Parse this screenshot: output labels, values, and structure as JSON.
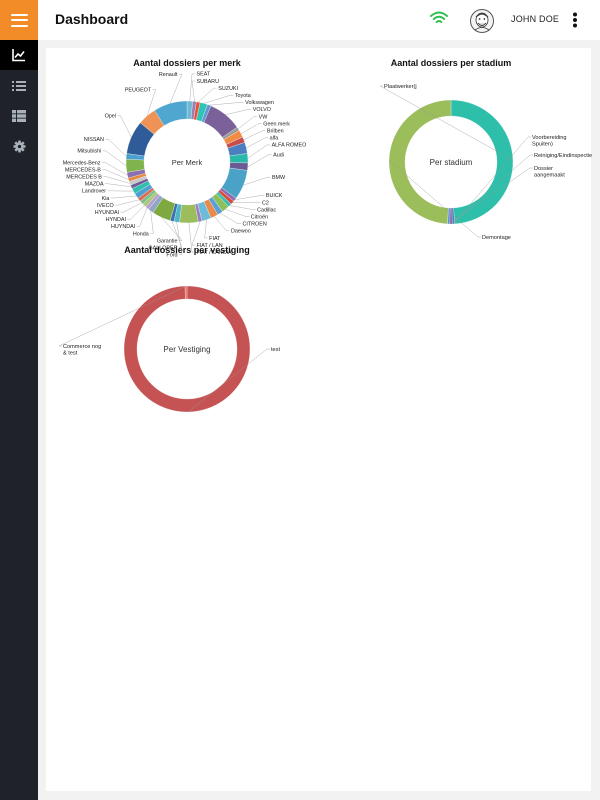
{
  "header": {
    "title": "Dashboard",
    "user_name": "JOHN DOE"
  },
  "icons": {
    "menu": "hamburger-icon",
    "wifi": "wifi-icon",
    "avatar": "avatar-icon",
    "more": "more-vertical-icon"
  },
  "sidebar": {
    "items": [
      {
        "icon": "chart-icon",
        "active": true
      },
      {
        "icon": "list-icon",
        "active": false
      },
      {
        "icon": "grid-table-icon",
        "active": false
      },
      {
        "icon": "gear-icon",
        "active": false
      }
    ]
  },
  "colors": {
    "accent": "#f28c28",
    "sidebar": "#1f2329",
    "wifi": "#2fbf4f"
  },
  "chart_data": [
    {
      "type": "pie",
      "title": "Aantal dossiers per merk",
      "center_label": "Per Merk",
      "slices": [
        {
          "label": "SEAT",
          "value": 1.5,
          "color": "#6fb8d3"
        },
        {
          "label": "SUBARU",
          "value": 1,
          "color": "#9a7fb3"
        },
        {
          "label": "SUZUKI",
          "value": 1,
          "color": "#e5533b"
        },
        {
          "label": "Toyota",
          "value": 2,
          "color": "#30c3b6"
        },
        {
          "label": "Volkswagen",
          "value": 1,
          "color": "#5e98d1"
        },
        {
          "label": "VOLVO",
          "value": 9,
          "color": "#7a6199"
        },
        {
          "label": "VW",
          "value": 1,
          "color": "#9b9b9b"
        },
        {
          "label": "Geen merk",
          "value": 2,
          "color": "#f28c44"
        },
        {
          "label": "Brilben",
          "value": 1.5,
          "color": "#c74d4d"
        },
        {
          "label": "alfa",
          "value": 3,
          "color": "#4c7fc0"
        },
        {
          "label": "ALFA ROMEO",
          "value": 2.5,
          "color": "#2ab8a8"
        },
        {
          "label": "Audi",
          "value": 2,
          "color": "#6b5b95"
        },
        {
          "label": "BMW",
          "value": 8,
          "color": "#4aa3c7"
        },
        {
          "label": "BUICK",
          "value": 1,
          "color": "#8c6bb1"
        },
        {
          "label": "C2",
          "value": 1,
          "color": "#d94a3a"
        },
        {
          "label": "Cadillac",
          "value": 1,
          "color": "#3bbfae"
        },
        {
          "label": "Citroën",
          "value": 2,
          "color": "#8fbf5a"
        },
        {
          "label": "CITROEN",
          "value": 1.5,
          "color": "#5aa0d8"
        },
        {
          "label": "Daewoo",
          "value": 2,
          "color": "#e88a4a"
        },
        {
          "label": "FIAT",
          "value": 2.5,
          "color": "#6dbbd8"
        },
        {
          "label": "FIAT / LAN",
          "value": 1,
          "color": "#9c7fc0"
        },
        {
          "label": "FIAT / LANCIA",
          "value": 5,
          "color": "#9bbd5c"
        },
        {
          "label": "Ford",
          "value": 1.5,
          "color": "#4fb5c9"
        },
        {
          "label": "GALLOPER",
          "value": 1,
          "color": "#3a6fb5"
        },
        {
          "label": "Garantie",
          "value": 5,
          "color": "#7ea840"
        },
        {
          "label": "Honda",
          "value": 1.5,
          "color": "#8ea7c7"
        },
        {
          "label": "HUYNDAI",
          "value": 1,
          "color": "#b7a0cf"
        },
        {
          "label": "HYNDAI",
          "value": 1,
          "color": "#a9c97a"
        },
        {
          "label": "HYUNDAI",
          "value": 1,
          "color": "#7dbf8a"
        },
        {
          "label": "IVECO",
          "value": 1,
          "color": "#e06b55"
        },
        {
          "label": "Kia",
          "value": 1.5,
          "color": "#4f9fd0"
        },
        {
          "label": "Landrover",
          "value": 1.5,
          "color": "#2fbfae"
        },
        {
          "label": "MAZDA",
          "value": 1,
          "color": "#6f5e9a"
        },
        {
          "label": "MERCEDES B",
          "value": 1,
          "color": "#c8c8c8"
        },
        {
          "label": "MERCEDES-B",
          "value": 1,
          "color": "#e38a3f"
        },
        {
          "label": "Mercedes-Benz",
          "value": 1.5,
          "color": "#8b6fb0"
        },
        {
          "label": "Mitsubishi",
          "value": 3.5,
          "color": "#80b34d"
        },
        {
          "label": "NISSAN",
          "value": 1.5,
          "color": "#4aa0cf"
        },
        {
          "label": "Opel",
          "value": 9,
          "color": "#2f5b99"
        },
        {
          "label": "PEUGEOT",
          "value": 5,
          "color": "#ef9255"
        },
        {
          "label": "Renault",
          "value": 9,
          "color": "#4fa7cf"
        }
      ]
    },
    {
      "type": "pie",
      "title": "Aantal dossiers per stadium",
      "center_label": "Per stadium",
      "slices": [
        {
          "label": "Plaatwerker(j",
          "value": 49,
          "color": "#2ebfab"
        },
        {
          "label": "Voorbereiding Spuiten)",
          "value": 0.6,
          "color": "#3a78c2"
        },
        {
          "label": "Reiniging/Eindinspectie",
          "value": 0.6,
          "color": "#7a5c9e"
        },
        {
          "label": "Dossier aangemaakt",
          "value": 0.6,
          "color": "#5a8fd0"
        },
        {
          "label": "Demontage",
          "value": 49,
          "color": "#9bbd5a"
        }
      ]
    },
    {
      "type": "pie",
      "title": "Aantal dossiers per vestiging",
      "center_label": "Per Vestiging",
      "slices": [
        {
          "label": "test",
          "value": 99.5,
          "color": "#c65353"
        },
        {
          "label": "Commerce nog & test",
          "value": 0.5,
          "color": "#e86a5a"
        }
      ]
    }
  ]
}
